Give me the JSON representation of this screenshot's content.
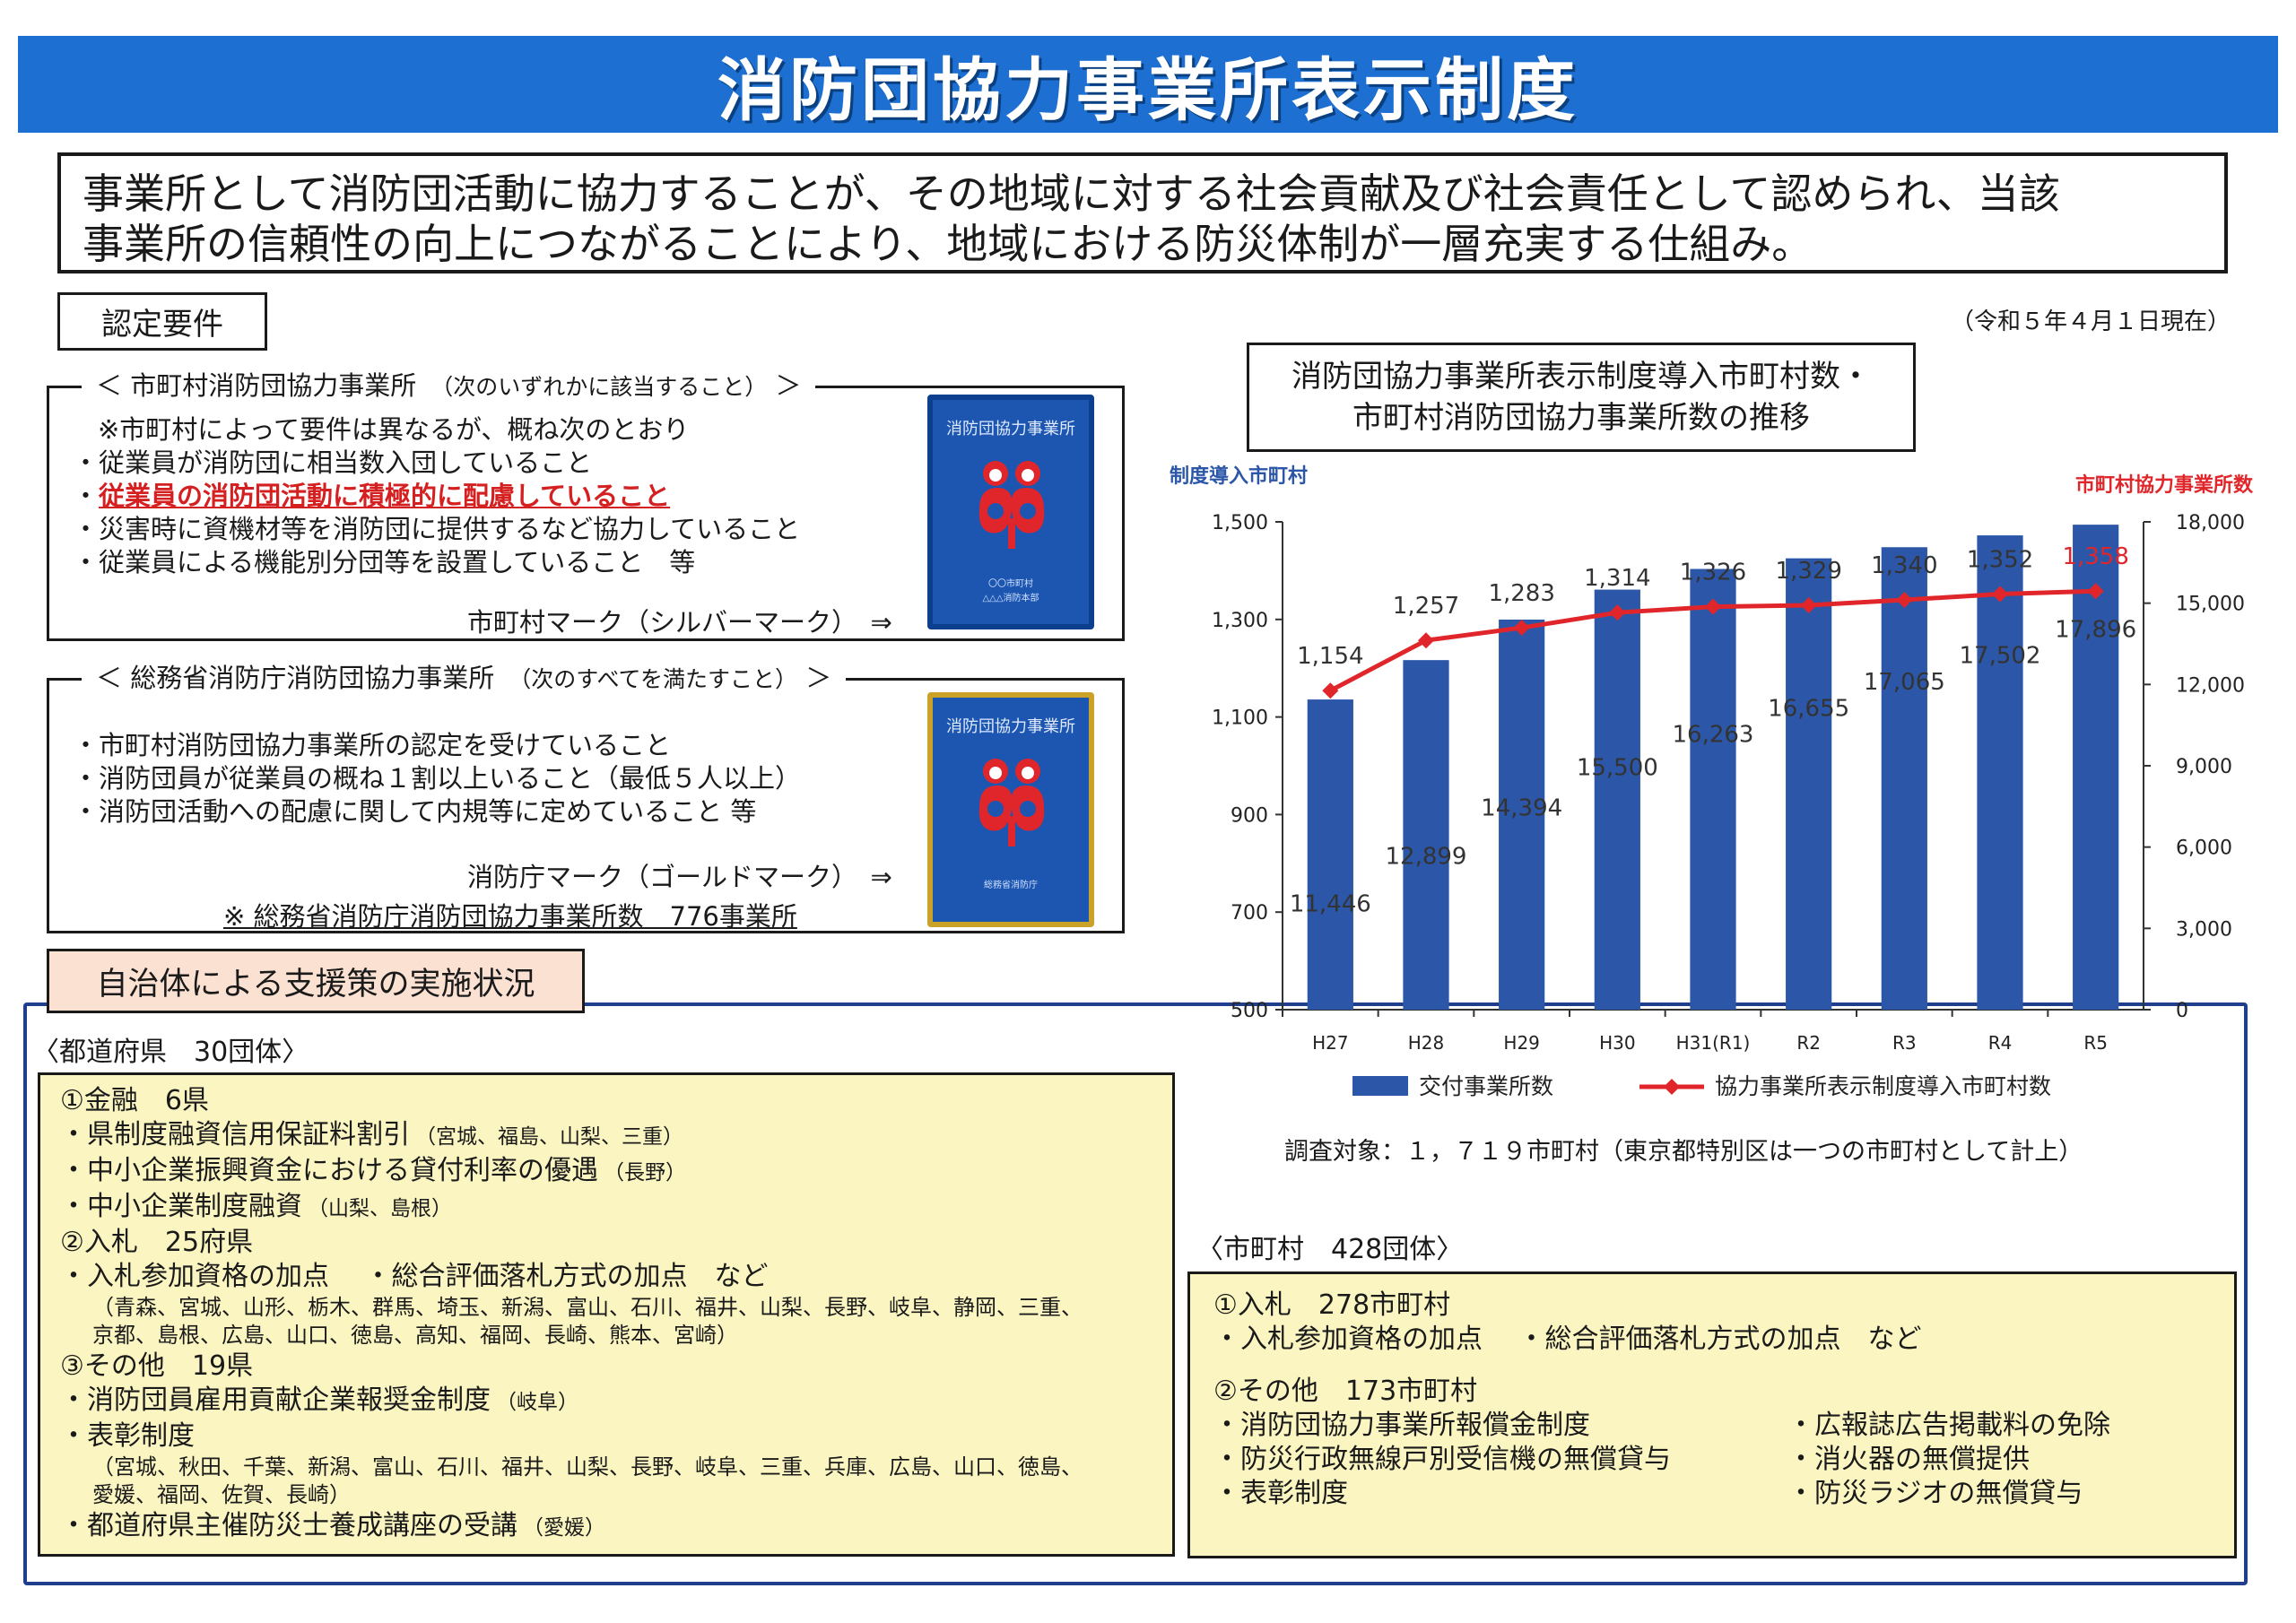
{
  "title": "消防団協力事業所表示制度",
  "summary": {
    "line1": "事業所として消防団活動に協力することが、その地域に対する社会貢献及び社会責任として認められ、当該",
    "line2": "事業所の信頼性の向上につながることにより、地域における防災体制が一層充実する仕組み。"
  },
  "requirements_label": "認定要件",
  "as_of": "（令和５年４月１日現在）",
  "municipal_panel": {
    "heading": "＜ 市町村消防団協力事業所",
    "heading_note": "（次のいずれかに該当すること）",
    "heading_close": "＞",
    "lines": [
      "※市町村によって要件は異なるが、概ね次のとおり",
      "・従業員が消防団に相当数入団していること",
      "・従業員の消防団活動に積極的に配慮していること",
      "・災害時に資機材等を消防団に提供するなど協力していること",
      "・従業員による機能別分団等を設置していること　等"
    ],
    "mark_label": "市町村マーク（シルバーマーク）　⇒"
  },
  "fdma_panel": {
    "heading": "＜ 総務省消防庁消防団協力事業所",
    "heading_note": "（次のすべてを満たすこと）",
    "heading_close": "＞",
    "lines": [
      "・市町村消防団協力事業所の認定を受けていること",
      "・消防団員が従業員の概ね１割以上いること（最低５人以上）",
      "・消防団活動への配慮に関して内規等に定めていること 等"
    ],
    "mark_label": "消防庁マーク（ゴールドマーク）　⇒",
    "count_label": "※ 総務省消防庁消防団協力事業所数　776事業所"
  },
  "badge": {
    "title": "消防団協力事業所",
    "silver_sub1": "〇〇市町村",
    "silver_sub2": "△△△消防本部",
    "gold_sub1": "総務省消防庁"
  },
  "support": {
    "tag": "自治体による支援策の実施状況",
    "prefecture_head": "〈都道府県　30団体〉",
    "prefecture_items": [
      {
        "kind": "main",
        "text": "①金融　6県"
      },
      {
        "kind": "main",
        "text": "・県制度融資信用保証料割引",
        "paren": "（宮城、福島、山梨、三重）"
      },
      {
        "kind": "main",
        "text": "・中小企業振興資金における貸付利率の優遇",
        "paren": "（長野）"
      },
      {
        "kind": "main",
        "text": "・中小企業制度融資",
        "paren": "（山梨、島根）"
      },
      {
        "kind": "main",
        "text": "②入札　25府県"
      },
      {
        "kind": "main",
        "text": "・入札参加資格の加点　 ・総合評価落札方式の加点　など"
      },
      {
        "kind": "sub",
        "text": "（青森、宮城、山形、栃木、群馬、埼玉、新潟、富山、石川、福井、山梨、長野、岐阜、静岡、三重、"
      },
      {
        "kind": "sub",
        "text": "京都、島根、広島、山口、徳島、高知、福岡、長崎、熊本、宮崎）"
      },
      {
        "kind": "main",
        "text": "③その他　19県"
      },
      {
        "kind": "main",
        "text": "・消防団員雇用貢献企業報奨金制度",
        "paren": "（岐阜）"
      },
      {
        "kind": "main",
        "text": "・表彰制度"
      },
      {
        "kind": "sub",
        "text": "（宮城、秋田、千葉、新潟、富山、石川、福井、山梨、長野、岐阜、三重、兵庫、広島、山口、徳島、"
      },
      {
        "kind": "sub",
        "text": "愛媛、福岡、佐賀、長崎）"
      },
      {
        "kind": "main",
        "text": "・都道府県主催防災士養成講座の受講",
        "paren": "（愛媛）"
      }
    ],
    "municipal_head": "〈市町村　428団体〉",
    "municipal_items": {
      "bid_title": "①入札　278市町村",
      "bid_detail": "・入札参加資格の加点　 ・総合評価落札方式の加点　など",
      "other_title": "②その他　173市町村",
      "col1": [
        "・消防団協力事業所報償金制度",
        "・防災行政無線戸別受信機の無償貸与",
        "・表彰制度"
      ],
      "col2": [
        "・広報誌広告掲載料の免除",
        "・消火器の無償提供",
        "・防災ラジオの無償貸与"
      ]
    }
  },
  "chart_title": {
    "line1": "消防団協力事業所表示制度導入市町村数・",
    "line2": "市町村消防団協力事業所数の推移"
  },
  "survey_note": "調査対象：１，７１９市町村（東京都特別区は一つの市町村として計上）",
  "chart_data": {
    "type": "bar",
    "categories": [
      "H27",
      "H28",
      "H29",
      "H30",
      "H31(R1)",
      "R2",
      "R3",
      "R4",
      "R5"
    ],
    "series": [
      {
        "name": "交付事業所数",
        "type": "bar",
        "axis": "right",
        "color": "#2c57a8",
        "values": [
          11446,
          12899,
          14394,
          15500,
          16263,
          16655,
          17065,
          17502,
          17896
        ],
        "labels": [
          "11,446",
          "12,899",
          "14,394",
          "15,500",
          "16,263",
          "16,655",
          "17,065",
          "17,502",
          "17,896"
        ]
      },
      {
        "name": "協力事業所表示制度導入市町村数",
        "type": "line",
        "axis": "left",
        "color": "#e0262a",
        "values": [
          1154,
          1257,
          1283,
          1314,
          1326,
          1329,
          1340,
          1352,
          1358
        ],
        "labels": [
          "1,154",
          "1,257",
          "1,283",
          "1,314",
          "1,326",
          "1,329",
          "1,340",
          "1,352",
          "1,358"
        ]
      }
    ],
    "left_axis": {
      "label": "制度導入市町村",
      "color": "#2c57a8",
      "min": 500,
      "max": 1500,
      "ticks": [
        500,
        700,
        900,
        1100,
        1300,
        1500
      ],
      "tick_labels": [
        "500",
        "700",
        "900",
        "1,100",
        "1,300",
        "1,500"
      ]
    },
    "right_axis": {
      "label": "市町村協力事業所数",
      "color": "#e0262a",
      "min": 0,
      "max": 18000,
      "ticks": [
        0,
        3000,
        6000,
        9000,
        12000,
        15000,
        18000
      ],
      "tick_labels": [
        "0",
        "3,000",
        "6,000",
        "9,000",
        "12,000",
        "15,000",
        "18,000"
      ]
    },
    "legend_placement": "bottom",
    "grid": false
  }
}
